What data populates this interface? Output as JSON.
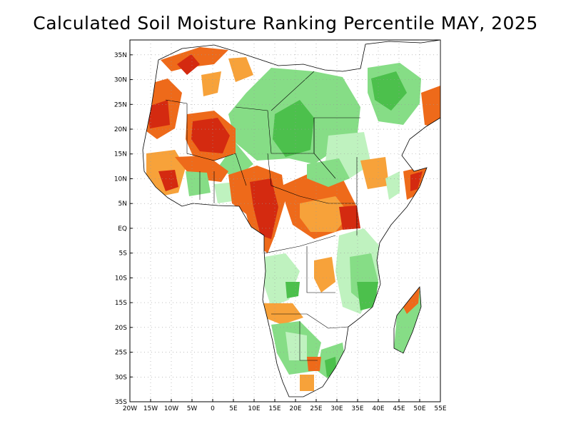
{
  "title": "Calculated Soil Moisture Ranking Percentile MAY, 2025",
  "map": {
    "region": "Africa",
    "lon_range": [
      -20,
      55
    ],
    "lat_range": [
      -35,
      38
    ],
    "grid": true,
    "lon_ticks": [
      "20W",
      "15W",
      "10W",
      "5W",
      "0",
      "5E",
      "10E",
      "15E",
      "20E",
      "25E",
      "30E",
      "35E",
      "40E",
      "45E",
      "50E",
      "55E"
    ],
    "lat_ticks": [
      "35N",
      "30N",
      "25N",
      "20N",
      "15N",
      "10N",
      "5N",
      "EQ",
      "5S",
      "10S",
      "15S",
      "20S",
      "25S",
      "30S",
      "35S"
    ],
    "colors": {
      "very_dry": "#d42a10",
      "dry": "#ee6a1a",
      "moderately_dry": "#f7a23a",
      "moderately_wet": "#bff2bf",
      "wet": "#86dd86",
      "very_wet": "#4cc04c",
      "land_outline": "#000000",
      "grid": "#999999"
    }
  }
}
